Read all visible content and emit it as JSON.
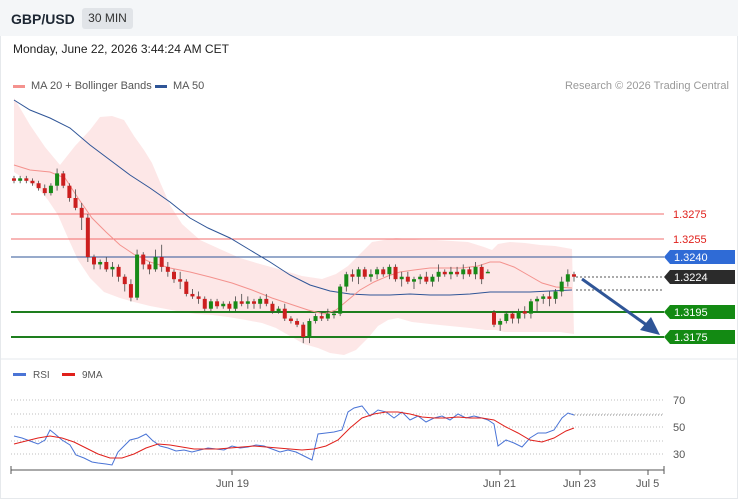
{
  "header": {
    "symbol": "GBP/USD",
    "timeframe": "30 MIN"
  },
  "datetime": "Monday, June 22, 2026 3:44:24 AM CET",
  "legend": {
    "ma20": {
      "label": "MA 20 + Bollinger Bands",
      "color": "#f4928e"
    },
    "ma50": {
      "label": "MA 50",
      "color": "#2f5597"
    }
  },
  "credit": "Research © 2026 Trading Central",
  "levels": [
    {
      "value": "1.3275",
      "type": "resistance"
    },
    {
      "value": "1.3255",
      "type": "resistance"
    },
    {
      "value": "1.3240",
      "type": "pivot"
    },
    {
      "value": "1.3224",
      "type": "last"
    },
    {
      "value": "1.3195",
      "type": "support"
    },
    {
      "value": "1.3175",
      "type": "support"
    }
  ],
  "rsi_legend": {
    "rsi": {
      "label": "RSI",
      "color": "#4a74d6"
    },
    "ma9": {
      "label": "9MA",
      "color": "#e0201b"
    }
  },
  "rsi_ticks": [
    "70",
    "50",
    "30"
  ],
  "x_ticks": [
    "Jun 19",
    "Jun 21",
    "Jun 23",
    "Jul 5"
  ],
  "chart_data": {
    "type": "candlestick",
    "title": "",
    "y_levels": [
      1.3275,
      1.3255,
      1.324,
      1.3224,
      1.3195,
      1.3175
    ],
    "rsi_ticks": [
      70,
      50,
      30
    ],
    "x_ticks": [
      "Jun 19",
      "Jun 21",
      "Jun 23",
      "Jul 5"
    ],
    "ohlc": [
      [
        1.3304,
        1.3306,
        1.33,
        1.3302
      ],
      [
        1.3302,
        1.3306,
        1.33,
        1.3304
      ],
      [
        1.3304,
        1.3306,
        1.33,
        1.3302
      ],
      [
        1.3302,
        1.3304,
        1.3298,
        1.33
      ],
      [
        1.33,
        1.3302,
        1.3294,
        1.3296
      ],
      [
        1.3296,
        1.3299,
        1.329,
        1.3292
      ],
      [
        1.3292,
        1.33,
        1.329,
        1.3298
      ],
      [
        1.3298,
        1.3312,
        1.3294,
        1.3308
      ],
      [
        1.3308,
        1.331,
        1.3296,
        1.3298
      ],
      [
        1.3298,
        1.33,
        1.3285,
        1.3288
      ],
      [
        1.3288,
        1.3295,
        1.3278,
        1.328
      ],
      [
        1.328,
        1.3284,
        1.3262,
        1.3272
      ],
      [
        1.3272,
        1.3275,
        1.3236,
        1.324
      ],
      [
        1.324,
        1.3242,
        1.323,
        1.3234
      ],
      [
        1.3234,
        1.3238,
        1.323,
        1.3236
      ],
      [
        1.3236,
        1.324,
        1.3228,
        1.323
      ],
      [
        1.323,
        1.3236,
        1.3224,
        1.3232
      ],
      [
        1.3232,
        1.3234,
        1.322,
        1.3224
      ],
      [
        1.3224,
        1.3226,
        1.3212,
        1.3218
      ],
      [
        1.3218,
        1.3222,
        1.3204,
        1.3207
      ],
      [
        1.3207,
        1.3246,
        1.3205,
        1.3242
      ],
      [
        1.3242,
        1.3244,
        1.323,
        1.3234
      ],
      [
        1.3234,
        1.3236,
        1.3226,
        1.323
      ],
      [
        1.323,
        1.3246,
        1.3228,
        1.324
      ],
      [
        1.324,
        1.325,
        1.3228,
        1.3232
      ],
      [
        1.3232,
        1.3236,
        1.3224,
        1.3228
      ],
      [
        1.3228,
        1.323,
        1.3219,
        1.3222
      ],
      [
        1.3222,
        1.3228,
        1.3214,
        1.322
      ],
      [
        1.322,
        1.3222,
        1.3208,
        1.321
      ],
      [
        1.321,
        1.3214,
        1.3206,
        1.3208
      ],
      [
        1.3208,
        1.3212,
        1.3202,
        1.3206
      ],
      [
        1.3206,
        1.3208,
        1.3196,
        1.3198
      ],
      [
        1.3198,
        1.3206,
        1.3196,
        1.3204
      ],
      [
        1.3204,
        1.3206,
        1.3198,
        1.32
      ],
      [
        1.32,
        1.3204,
        1.3198,
        1.3202
      ],
      [
        1.3202,
        1.3204,
        1.3196,
        1.3198
      ],
      [
        1.3198,
        1.3208,
        1.3196,
        1.3204
      ],
      [
        1.3204,
        1.321,
        1.32,
        1.3202
      ],
      [
        1.3202,
        1.3208,
        1.3198,
        1.3204
      ],
      [
        1.3204,
        1.3206,
        1.3198,
        1.3202
      ],
      [
        1.3202,
        1.3208,
        1.3198,
        1.3206
      ],
      [
        1.3206,
        1.321,
        1.32,
        1.3202
      ],
      [
        1.3202,
        1.3204,
        1.3194,
        1.3196
      ],
      [
        1.3196,
        1.32,
        1.3194,
        1.3198
      ],
      [
        1.3198,
        1.3202,
        1.3188,
        1.319
      ],
      [
        1.319,
        1.3192,
        1.3186,
        1.3188
      ],
      [
        1.3188,
        1.319,
        1.3183,
        1.3185
      ],
      [
        1.3185,
        1.3187,
        1.317,
        1.3175
      ],
      [
        1.3175,
        1.319,
        1.317,
        1.3188
      ],
      [
        1.3188,
        1.3194,
        1.3186,
        1.3192
      ],
      [
        1.3192,
        1.3196,
        1.3188,
        1.319
      ],
      [
        1.319,
        1.3198,
        1.3188,
        1.3194
      ],
      [
        1.3194,
        1.3196,
        1.319,
        1.3194
      ],
      [
        1.3194,
        1.3218,
        1.3192,
        1.3216
      ],
      [
        1.3216,
        1.3228,
        1.3212,
        1.3226
      ],
      [
        1.3226,
        1.323,
        1.322,
        1.3224
      ],
      [
        1.3224,
        1.3232,
        1.3218,
        1.323
      ],
      [
        1.323,
        1.3232,
        1.3222,
        1.3224
      ],
      [
        1.3224,
        1.323,
        1.322,
        1.3226
      ],
      [
        1.3226,
        1.3232,
        1.3222,
        1.323
      ],
      [
        1.323,
        1.3232,
        1.3224,
        1.3226
      ],
      [
        1.3226,
        1.3234,
        1.3222,
        1.3232
      ],
      [
        1.3232,
        1.3234,
        1.322,
        1.3222
      ],
      [
        1.3222,
        1.3228,
        1.3216,
        1.3224
      ],
      [
        1.3224,
        1.3228,
        1.3218,
        1.322
      ],
      [
        1.322,
        1.3224,
        1.3214,
        1.3222
      ],
      [
        1.3222,
        1.3226,
        1.3218,
        1.3224
      ],
      [
        1.3224,
        1.3228,
        1.3218,
        1.322
      ],
      [
        1.322,
        1.3226,
        1.3216,
        1.3224
      ],
      [
        1.3224,
        1.3234,
        1.322,
        1.3228
      ],
      [
        1.3228,
        1.323,
        1.3224,
        1.3226
      ],
      [
        1.3226,
        1.3232,
        1.3222,
        1.3228
      ],
      [
        1.3228,
        1.3232,
        1.3224,
        1.3226
      ],
      [
        1.3226,
        1.3234,
        1.3222,
        1.323
      ],
      [
        1.323,
        1.3232,
        1.3224,
        1.3226
      ],
      [
        1.3226,
        1.3236,
        1.3222,
        1.3232
      ],
      [
        1.3232,
        1.3234,
        1.3218,
        1.3222
      ],
      [
        1.3228,
        1.323,
        1.3227,
        1.3228
      ],
      [
        1.3195,
        1.3197,
        1.3183,
        1.3185
      ],
      [
        1.3185,
        1.319,
        1.318,
        1.3188
      ],
      [
        1.3188,
        1.3196,
        1.3186,
        1.3194
      ],
      [
        1.3194,
        1.3196,
        1.3186,
        1.319
      ],
      [
        1.319,
        1.3198,
        1.3186,
        1.3196
      ],
      [
        1.3196,
        1.32,
        1.319,
        1.3194
      ],
      [
        1.3194,
        1.3206,
        1.319,
        1.3204
      ],
      [
        1.3204,
        1.3208,
        1.3196,
        1.3206
      ],
      [
        1.3206,
        1.321,
        1.3202,
        1.3208
      ],
      [
        1.3208,
        1.3212,
        1.32,
        1.3206
      ],
      [
        1.3206,
        1.3214,
        1.3202,
        1.3212
      ],
      [
        1.3212,
        1.3224,
        1.3208,
        1.322
      ],
      [
        1.322,
        1.323,
        1.3216,
        1.3226
      ],
      [
        1.3226,
        1.3228,
        1.322,
        1.3224
      ]
    ]
  }
}
